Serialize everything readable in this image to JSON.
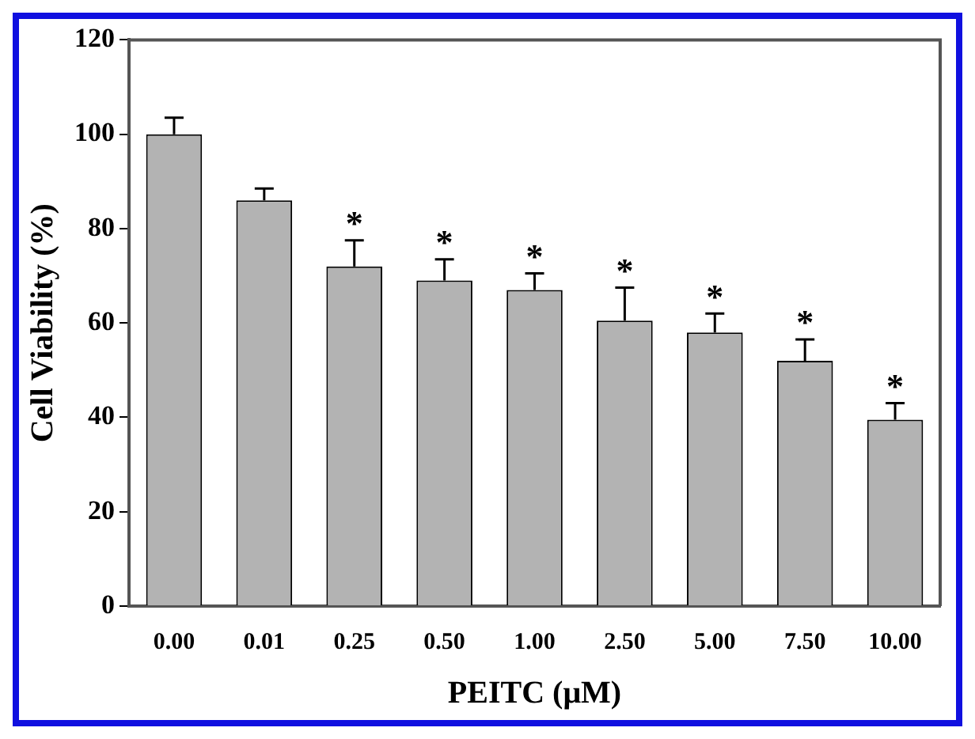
{
  "chart_data": {
    "type": "bar",
    "xlabel": "PEITC (μM)",
    "ylabel": "Cell Viability (%)",
    "categories": [
      "0.00",
      "0.01",
      "0.25",
      "0.50",
      "1.00",
      "2.50",
      "5.00",
      "7.50",
      "10.00"
    ],
    "values": [
      100,
      86,
      72,
      69,
      67,
      60.5,
      58,
      52,
      39.5
    ],
    "errors": [
      3.5,
      2.5,
      5.5,
      4.5,
      3.5,
      7,
      4,
      4.5,
      3.5
    ],
    "color": "#b3b3b3",
    "ylim": [
      0,
      120
    ],
    "yticks": [
      0,
      20,
      40,
      60,
      80,
      100,
      120
    ],
    "grid": false,
    "legend": false,
    "annotations": [
      {
        "text": "*",
        "x": "0.25",
        "y": 77.5
      },
      {
        "text": "*",
        "x": "0.50",
        "y": 73.5
      },
      {
        "text": "*",
        "x": "1.00",
        "y": 70.5
      },
      {
        "text": "*",
        "x": "2.50",
        "y": 67.5
      },
      {
        "text": "*",
        "x": "5.00",
        "y": 62
      },
      {
        "text": "*",
        "x": "7.50",
        "y": 56.5
      },
      {
        "text": "*",
        "x": "10.00",
        "y": 43
      }
    ]
  }
}
